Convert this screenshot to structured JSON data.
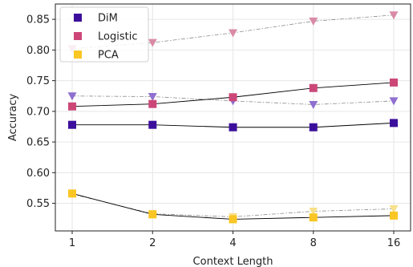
{
  "chart_data": {
    "type": "line",
    "xlabel": "Context Length",
    "ylabel": "Accuracy",
    "categories": [
      "1",
      "2",
      "4",
      "8",
      "16"
    ],
    "ylim": [
      0.505,
      0.875
    ],
    "yticks": [
      "0.55",
      "0.60",
      "0.65",
      "0.70",
      "0.75",
      "0.80",
      "0.85"
    ],
    "grid": true,
    "legend_position": "top-left",
    "legend": [
      {
        "name": "DiM",
        "color": "#3b0f9c"
      },
      {
        "name": "Logistic",
        "color": "#cc4778"
      },
      {
        "name": "PCA",
        "color": "#f9c623"
      }
    ],
    "series": [
      {
        "name": "DiM",
        "style": "solid",
        "marker": "square",
        "color": "#3b0f9c",
        "values": [
          0.678,
          0.678,
          0.674,
          0.674,
          0.681
        ]
      },
      {
        "name": "Logistic",
        "style": "solid",
        "marker": "square",
        "color": "#cc4778",
        "values": [
          0.708,
          0.712,
          0.723,
          0.738,
          0.747
        ]
      },
      {
        "name": "PCA",
        "style": "solid",
        "marker": "square",
        "color": "#f9c623",
        "values": [
          0.566,
          0.532,
          0.524,
          0.527,
          0.53
        ]
      },
      {
        "style": "dashdot",
        "marker": "triangle-down",
        "color": "#8f6fcf",
        "values": [
          0.725,
          0.724,
          0.717,
          0.711,
          0.717
        ]
      },
      {
        "style": "dashdot",
        "marker": "triangle-down",
        "color": "#d98aa6",
        "values": [
          0.802,
          0.812,
          0.828,
          0.847,
          0.857
        ]
      },
      {
        "style": "dashdot",
        "marker": "triangle-down",
        "color": "#f7e08a",
        "values": [
          0.565,
          0.533,
          0.528,
          0.537,
          0.541
        ]
      }
    ]
  }
}
